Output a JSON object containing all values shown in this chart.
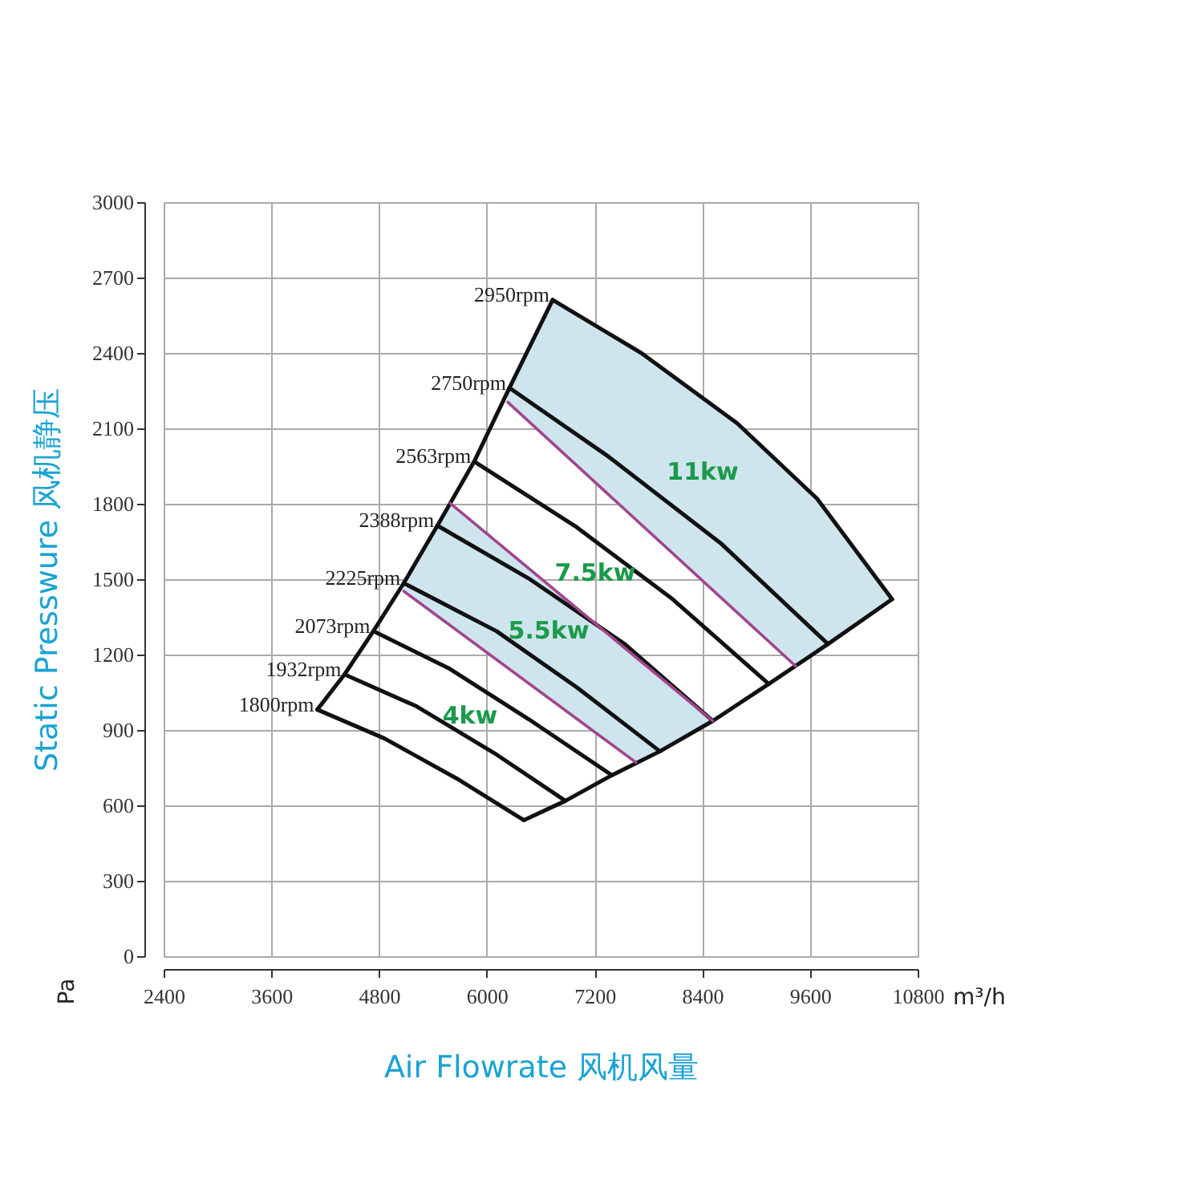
{
  "chart_data": {
    "type": "line",
    "xlabel": "Air Flowrate   风机风量",
    "ylabel": "Static Presswure  风机静压",
    "xlim": [
      2400,
      10800
    ],
    "xticks": [
      2400,
      3600,
      4800,
      6000,
      7200,
      8400,
      9600,
      10800
    ],
    "ylim": [
      0,
      3000
    ],
    "yticks": [
      0,
      300,
      600,
      900,
      1200,
      1500,
      1800,
      2100,
      2400,
      2700,
      3000
    ],
    "grid": true,
    "marker": "none",
    "line_style": "solid",
    "annotations": [
      "Pa",
      "m³/h",
      "11kw",
      "7.5kw",
      "5.5kw",
      "4kw"
    ],
    "series": [
      {
        "color": "#111111",
        "x": [
          4112,
          4415,
          4736,
          5075,
          5450,
          5860,
          6252,
          6734
        ],
        "values": [
          981,
          1121,
          1293,
          1484,
          1713,
          1968,
          2261,
          2611
        ]
      },
      {
        "color": "#111111",
        "x": [
          6413,
          6876,
          7394,
          7929,
          8517,
          9141,
          9801,
          10515
        ],
        "values": [
          541,
          618,
          720,
          815,
          936,
          1083,
          1242,
          1420
        ]
      },
      {
        "type": "line",
        "name": "2950rpm",
        "color": "#111111",
        "x": [
          6734,
          7720,
          8790,
          9680,
          10515
        ],
        "values": [
          2611,
          2400,
          2120,
          1820,
          1420
        ]
      },
      {
        "type": "line",
        "name": "2750rpm",
        "color": "#111111",
        "x": [
          6252,
          7358,
          8606,
          9801
        ],
        "values": [
          2261,
          1987,
          1643,
          1242
        ]
      },
      {
        "type": "line",
        "name": "2563rpm",
        "color": "#111111",
        "x": [
          5860,
          7001,
          8071,
          9141
        ],
        "values": [
          1968,
          1707,
          1420,
          1083
        ]
      },
      {
        "type": "line",
        "name": "2388rpm",
        "color": "#111111",
        "x": [
          5450,
          6466,
          7536,
          8517
        ],
        "values": [
          1713,
          1503,
          1242,
          936
        ]
      },
      {
        "type": "line",
        "name": "2225rpm",
        "color": "#111111",
        "x": [
          5075,
          6109,
          7001,
          7929
        ],
        "values": [
          1484,
          1293,
          1070,
          815
        ]
      },
      {
        "type": "line",
        "name": "2073rpm",
        "color": "#111111",
        "x": [
          4736,
          5574,
          6466,
          7394
        ],
        "values": [
          1293,
          1146,
          943,
          720
        ]
      },
      {
        "type": "line",
        "name": "1932rpm",
        "color": "#111111",
        "x": [
          4415,
          5218,
          6109,
          6876
        ],
        "values": [
          1121,
          994,
          802,
          618
        ]
      },
      {
        "type": "line",
        "name": "1800rpm",
        "color": "#111111",
        "x": [
          4112,
          4861,
          5664,
          6413
        ],
        "values": [
          981,
          866,
          707,
          541
        ]
      },
      {
        "color": "#a0468c",
        "x": [
          6234,
          9444
        ],
        "values": [
          2204,
          1153
        ]
      },
      {
        "color": "#a0468c",
        "x": [
          5592,
          8517
        ],
        "values": [
          1802,
          936
        ]
      },
      {
        "color": "#a0468c",
        "x": [
          5075,
          7661
        ],
        "values": [
          1452,
          771
        ]
      },
      {
        "type": "area",
        "color": "#cfe5ee",
        "x": [
          6234,
          6252,
          6734,
          7720,
          8790,
          9444,
          9680,
          9801,
          10515
        ],
        "values": [
          null,
          null,
          null,
          null,
          null,
          null,
          null,
          null,
          null
        ],
        "upper": [
          2204,
          2261,
          2611,
          2400,
          2120,
          1900,
          1820,
          1762,
          1420
        ],
        "lower": [
          2204,
          2198,
          2040,
          1717,
          1367,
          1153,
          1213,
          1242,
          1420
        ]
      },
      {
        "type": "area",
        "color": "#cfe5ee",
        "x": [
          5075,
          5450,
          5592,
          6466,
          7661,
          7929,
          8517
        ],
        "values": [
          null,
          null,
          null,
          null,
          null,
          null,
          null
        ],
        "upper": [
          1484,
          1713,
          1802,
          1543,
          1189,
          1110,
          936
        ],
        "lower": [
          1452,
          1353,
          1316,
          1086,
          771,
          815,
          936
        ]
      }
    ]
  }
}
